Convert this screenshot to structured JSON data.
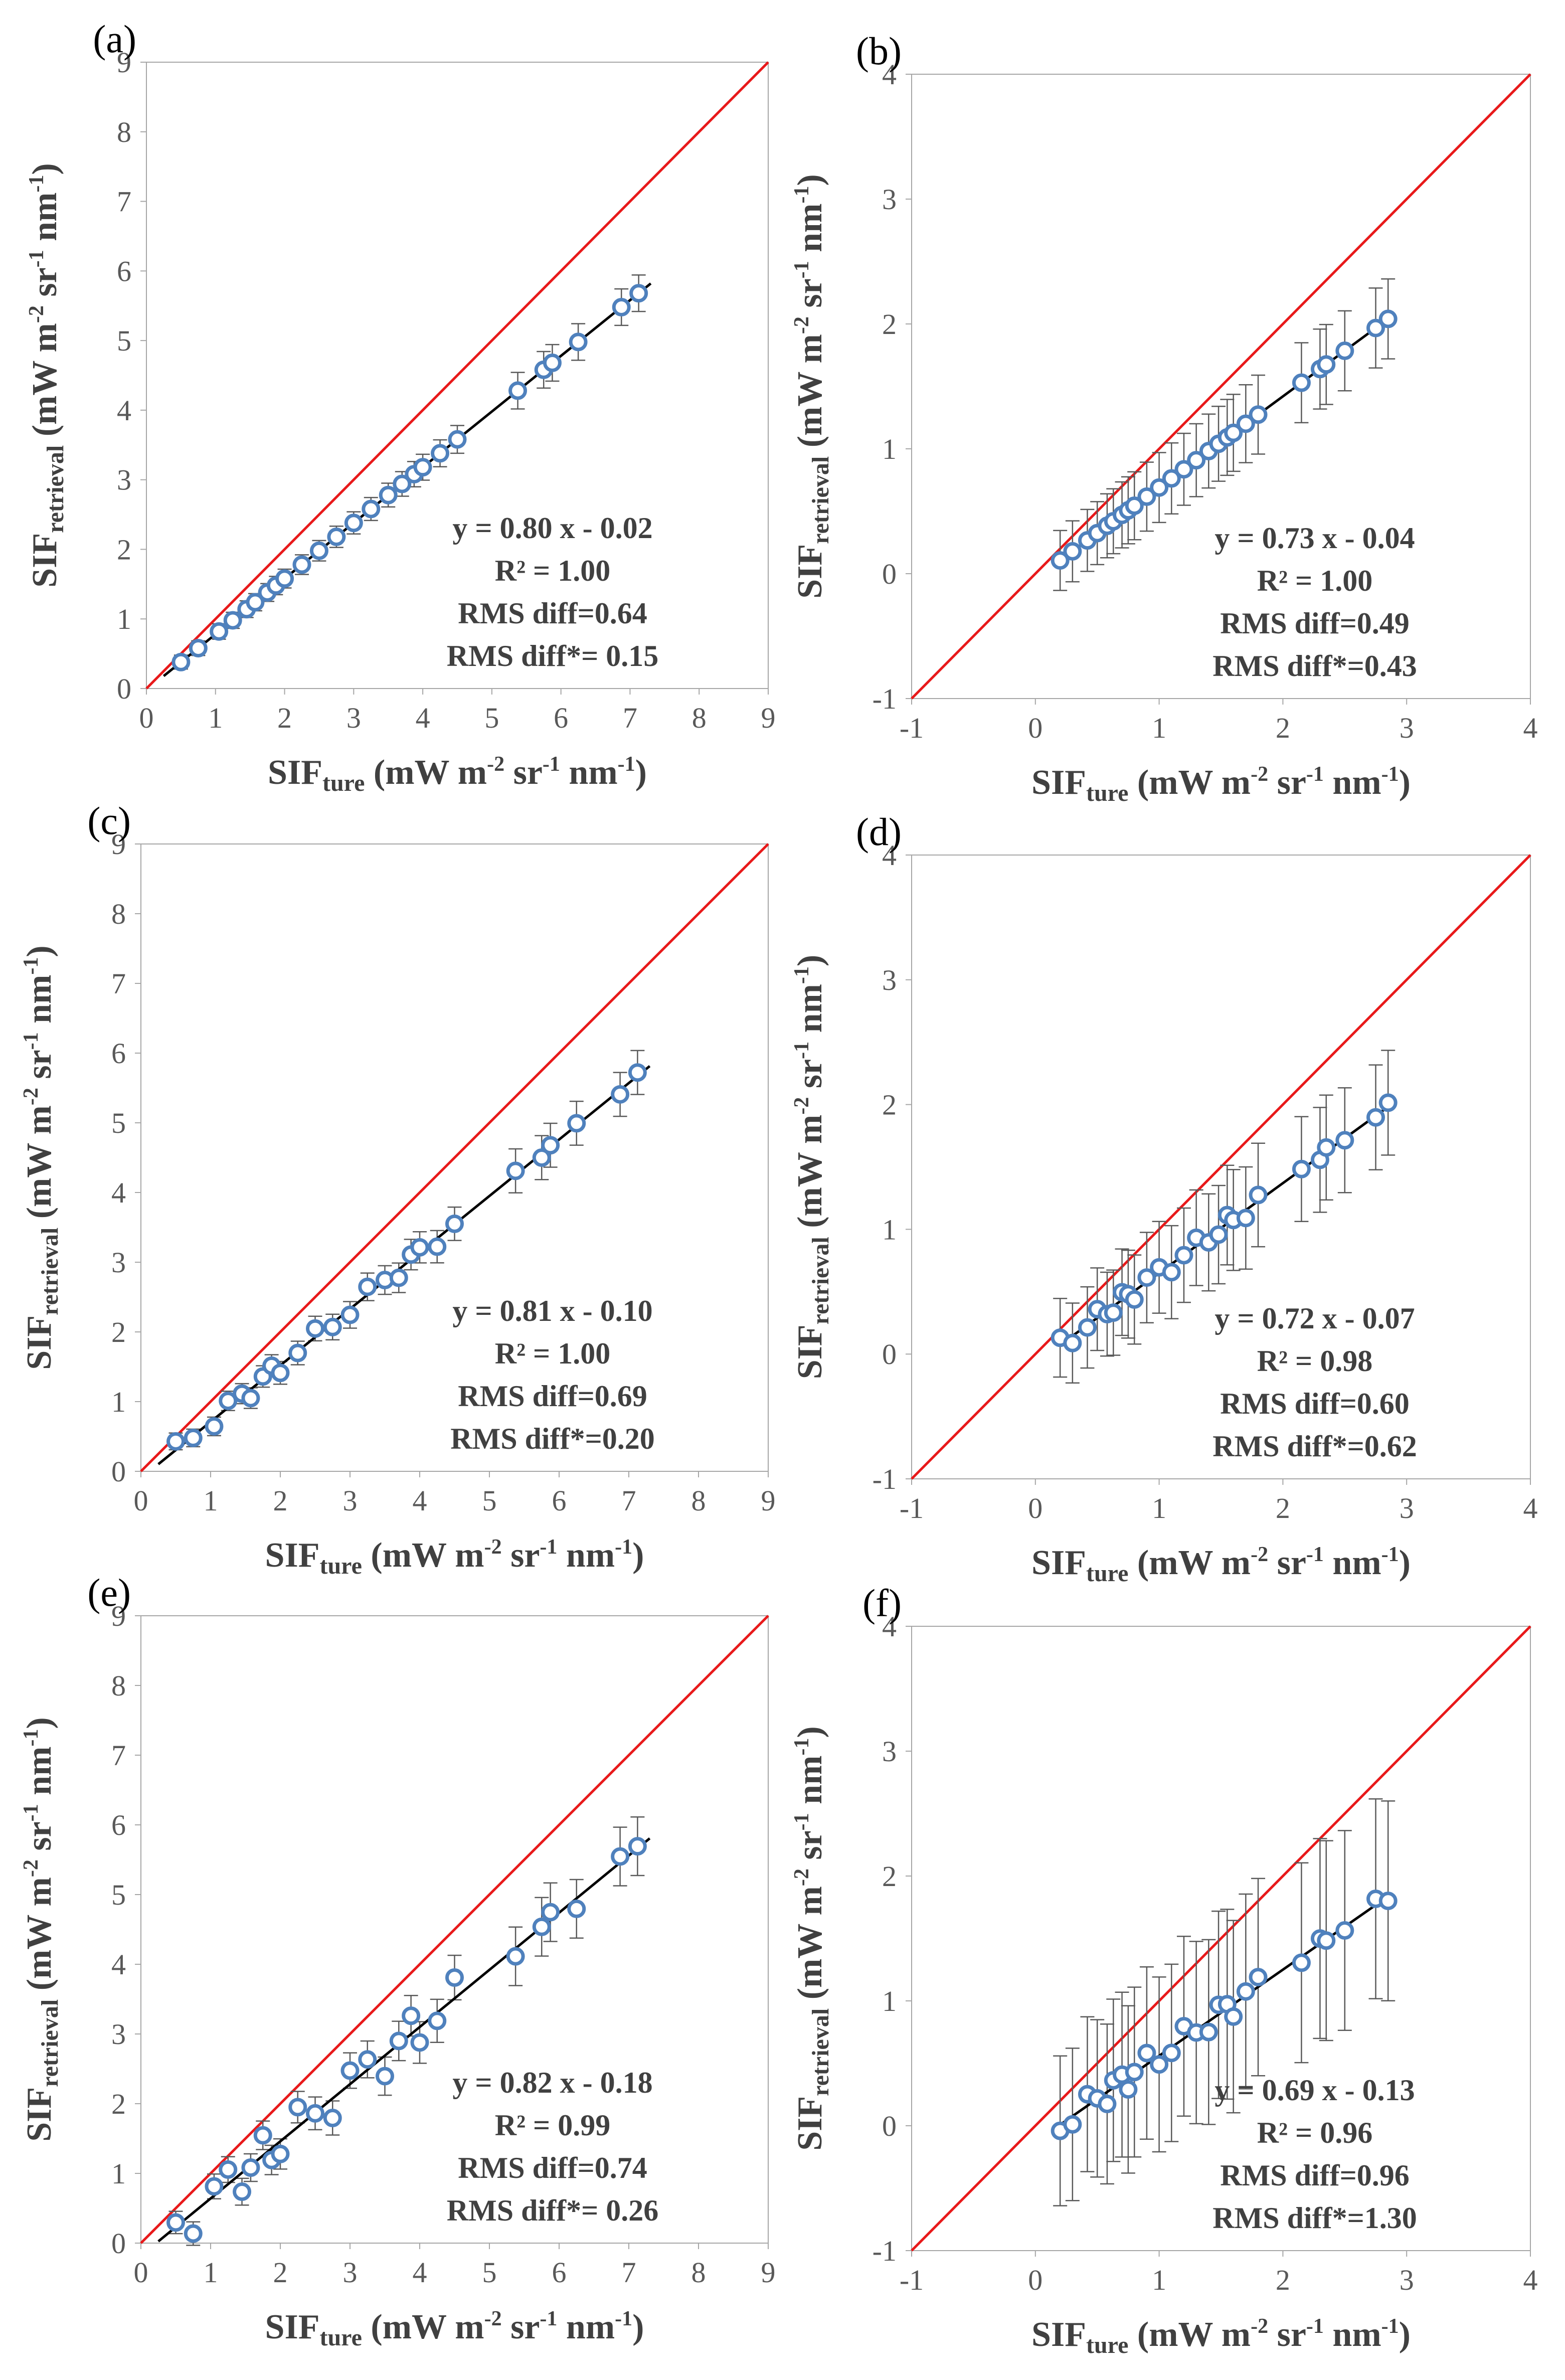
{
  "colors": {
    "marker": "#4F81BD",
    "fit": "#000000",
    "identity": "#E8191A",
    "error": "#595959",
    "axis": "#A6A6A6",
    "text": "#404040"
  },
  "axis_text": {
    "x_main": "SIF",
    "x_sub": "ture",
    "y_main": "SIF",
    "y_sub": "retrieval",
    "unit_open": " (mW m",
    "unit_m2": "-2",
    "unit_sr": " sr",
    "unit_sr_exp": "-1",
    "unit_nm": " nm",
    "unit_nm_exp": "-1",
    "unit_close": ")"
  },
  "true_x": [
    0.2,
    0.3,
    0.42,
    0.5,
    0.58,
    0.63,
    0.7,
    0.75,
    0.8,
    0.9,
    1.0,
    1.1,
    1.2,
    1.3,
    1.4,
    1.48,
    1.55,
    1.6,
    1.7,
    1.8
  ],
  "chart_data": [
    {
      "panel": "(a)",
      "type": "scatter",
      "xlim": [
        0,
        9
      ],
      "ylim": [
        0,
        9
      ],
      "xticks": [
        0,
        1,
        2,
        3,
        4,
        5,
        6,
        7,
        8,
        9
      ],
      "yticks": [
        0,
        1,
        2,
        3,
        4,
        5,
        6,
        7,
        8,
        9
      ],
      "xlabel": "SIFture (mW m-2 sr-1 nm-1)",
      "ylabel": "SIFretrieval (mW m-2 sr-1 nm-1)",
      "x_scale": 2.5,
      "fit_slope": 0.8,
      "fit_intercept": -0.02,
      "fit_x": [
        0.25,
        7.3
      ],
      "noise_y": 0,
      "error": 0.25,
      "annotation": [
        "y = 0.80 x - 0.02",
        "R² = 1.00",
        "RMS diff=0.64",
        "RMS diff*= 0.15"
      ]
    },
    {
      "panel": "(b)",
      "type": "scatter",
      "xlim": [
        -1,
        4
      ],
      "ylim": [
        -1,
        4
      ],
      "xticks": [
        -1,
        0,
        1,
        2,
        3,
        4
      ],
      "yticks": [
        -1,
        0,
        1,
        2,
        3,
        4
      ],
      "xlabel": "SIFture (mW m-2 sr-1 nm-1)",
      "ylabel": "SIFretrieval (mW m-2 sr-1 nm-1)",
      "x_scale": 1,
      "fit_slope": 0.73,
      "fit_intercept": -0.04,
      "fit_x": [
        0.2,
        2.85
      ],
      "noise_y": 0,
      "error": 0.32,
      "annotation": [
        "y = 0.73 x - 0.04",
        "R² = 1.00",
        "RMS diff=0.49",
        "RMS diff*=0.43"
      ]
    },
    {
      "panel": "(c)",
      "type": "scatter",
      "xlim": [
        0,
        9
      ],
      "ylim": [
        0,
        9
      ],
      "xticks": [
        0,
        1,
        2,
        3,
        4,
        5,
        6,
        7,
        8,
        9
      ],
      "yticks": [
        0,
        1,
        2,
        3,
        4,
        5,
        6,
        7,
        8,
        9
      ],
      "xlabel": "SIFture (mW m-2 sr-1 nm-1)",
      "ylabel": "SIFretrieval (mW m-2 sr-1 nm-1)",
      "x_scale": 2.5,
      "fit_slope": 0.81,
      "fit_intercept": -0.1,
      "fit_x": [
        0.25,
        7.3
      ],
      "noise_y": 0.05,
      "error": 0.3,
      "annotation": [
        "y = 0.81 x - 0.10",
        "R² = 1.00",
        "RMS diff=0.69",
        "RMS diff*=0.20"
      ]
    },
    {
      "panel": "(d)",
      "type": "scatter",
      "xlim": [
        -1,
        4
      ],
      "ylim": [
        -1,
        4
      ],
      "xticks": [
        -1,
        0,
        1,
        2,
        3,
        4
      ],
      "yticks": [
        -1,
        0,
        1,
        2,
        3,
        4
      ],
      "xlabel": "SIFture (mW m-2 sr-1 nm-1)",
      "ylabel": "SIFretrieval (mW m-2 sr-1 nm-1)",
      "x_scale": 1,
      "fit_slope": 0.72,
      "fit_intercept": -0.07,
      "fit_x": [
        0.2,
        2.85
      ],
      "noise_y": 0.07,
      "error": 0.42,
      "annotation": [
        "y = 0.72 x - 0.07",
        "R² = 0.98",
        "RMS diff=0.60",
        "RMS diff*=0.62"
      ]
    },
    {
      "panel": "(e)",
      "type": "scatter",
      "xlim": [
        0,
        9
      ],
      "ylim": [
        0,
        9
      ],
      "xticks": [
        0,
        1,
        2,
        3,
        4,
        5,
        6,
        7,
        8,
        9
      ],
      "yticks": [
        0,
        1,
        2,
        3,
        4,
        5,
        6,
        7,
        8,
        9
      ],
      "xlabel": "SIFture (mW m-2 sr-1 nm-1)",
      "ylabel": "SIFretrieval (mW m-2 sr-1 nm-1)",
      "x_scale": 2.5,
      "fit_slope": 0.82,
      "fit_intercept": -0.18,
      "fit_x": [
        0.25,
        7.3
      ],
      "noise_y": 0.12,
      "error": 0.4,
      "annotation": [
        "y = 0.82 x - 0.18",
        "R² = 0.99",
        "RMS diff=0.74",
        "RMS diff*= 0.26"
      ]
    },
    {
      "panel": "(f)",
      "type": "scatter",
      "xlim": [
        -1,
        4
      ],
      "ylim": [
        -1,
        4
      ],
      "xticks": [
        -1,
        0,
        1,
        2,
        3,
        4
      ],
      "yticks": [
        -1,
        0,
        1,
        2,
        3,
        4
      ],
      "xlabel": "SIFture (mW m-2 sr-1 nm-1)",
      "ylabel": "SIFretrieval (mW m-2 sr-1 nm-1)",
      "x_scale": 1,
      "fit_slope": 0.69,
      "fit_intercept": -0.13,
      "fit_x": [
        0.2,
        2.85
      ],
      "noise_y": 0.1,
      "error": 0.8,
      "annotation": [
        "y = 0.69 x - 0.13",
        "R² = 0.96",
        "RMS diff=0.96",
        "RMS diff*=1.30"
      ]
    }
  ]
}
